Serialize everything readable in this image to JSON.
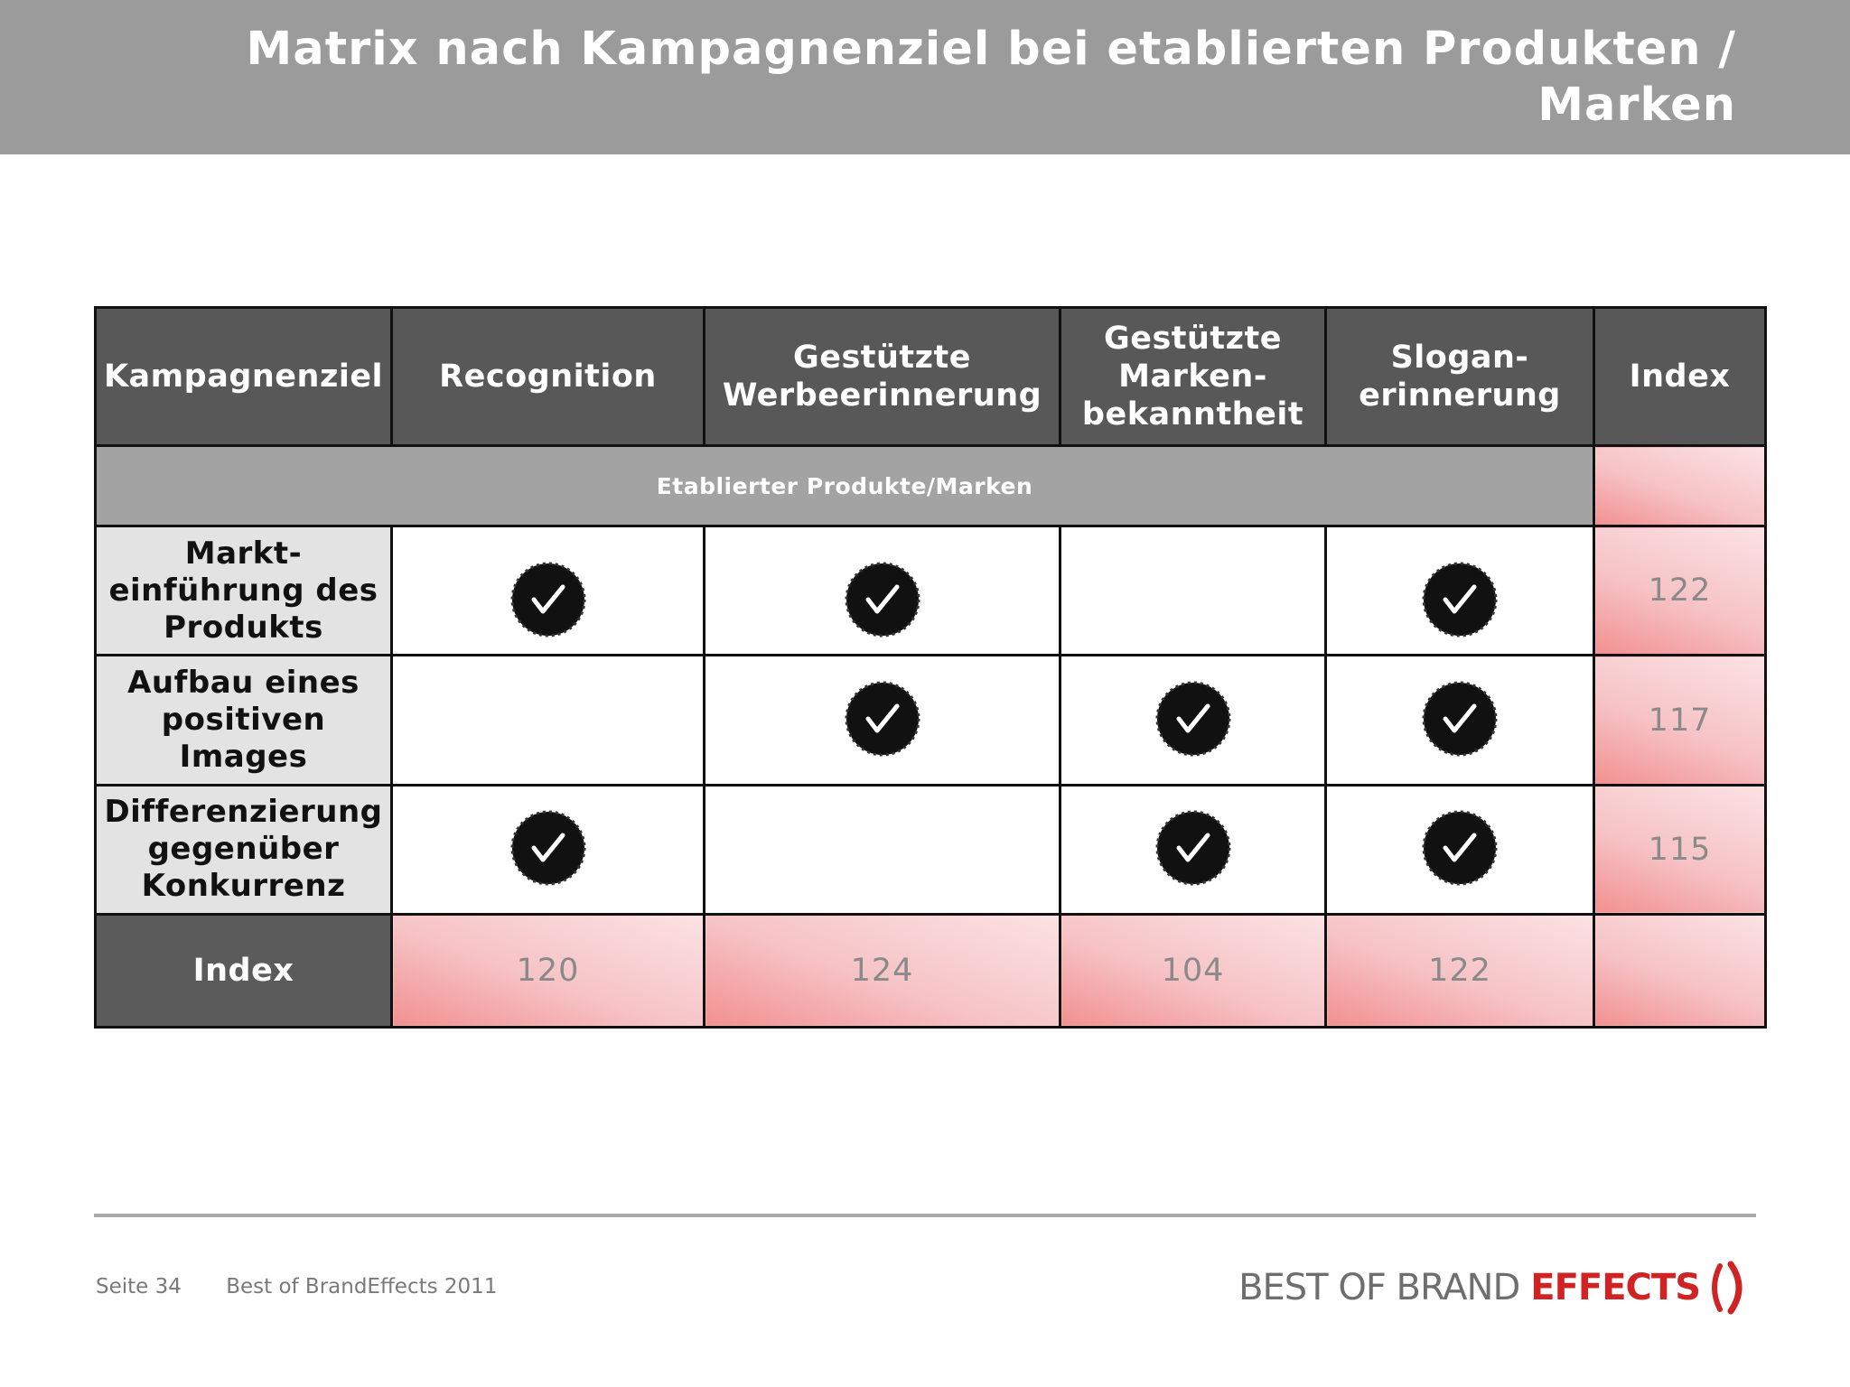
{
  "title": "Matrix nach Kampagnenziel bei etablierten Produkten / Marken",
  "table": {
    "headers": [
      "Kampagnenziel",
      "Recognition",
      "Gestützte Werbeerinnerung",
      "Gestützte Marken-bekanntheit",
      "Slogan-erinnerung",
      "Index"
    ],
    "group_label": "Etablierter Produkte/Marken",
    "rows": [
      {
        "label": "Markt-einführung des Produkts",
        "checks": [
          true,
          true,
          false,
          true
        ],
        "index": "122"
      },
      {
        "label": "Aufbau eines positiven Images",
        "checks": [
          false,
          true,
          true,
          true
        ],
        "index": "117"
      },
      {
        "label": "Differenzierung gegenüber Konkurrenz",
        "checks": [
          true,
          false,
          true,
          true
        ],
        "index": "115"
      }
    ],
    "index_row": {
      "label": "Index",
      "values": [
        "120",
        "124",
        "104",
        "122"
      ]
    }
  },
  "footer": {
    "page": "Seite 34",
    "source": "Best of BrandEffects 2011"
  },
  "logo": {
    "part1": "BEST OF BRAND",
    "part2": "EFFECTS",
    "accent_color": "#d02424"
  },
  "icons": {
    "check": "checkmark-badge-icon"
  }
}
